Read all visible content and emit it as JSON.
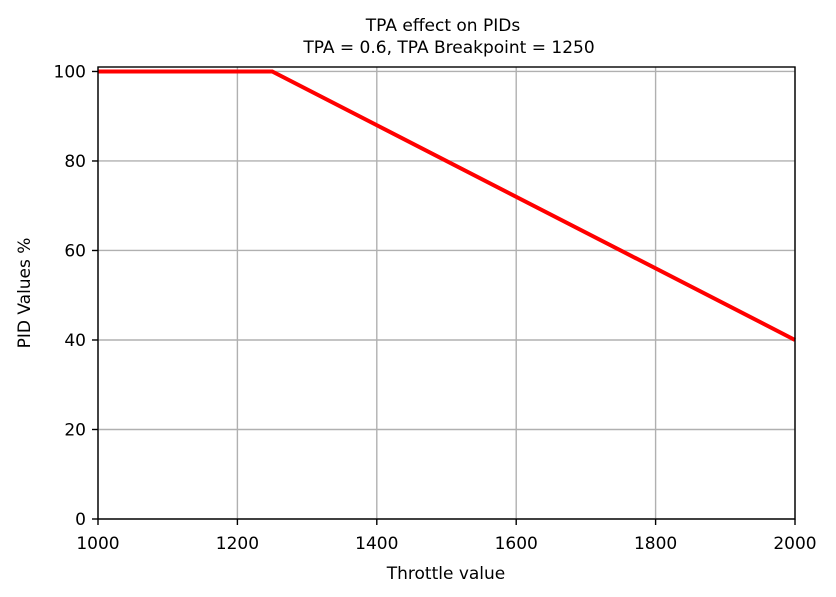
{
  "chart_data": {
    "type": "line",
    "title": "TPA effect on PIDs",
    "subtitle": "TPA = 0.6, TPA Breakpoint = 1250",
    "xlabel": "Throttle value",
    "ylabel": "PID Values %",
    "xlim": [
      1000,
      2000
    ],
    "ylim": [
      0,
      101
    ],
    "xticks": [
      1000,
      1200,
      1400,
      1600,
      1800,
      2000
    ],
    "yticks": [
      0,
      20,
      40,
      60,
      80,
      100
    ],
    "grid": true,
    "series": [
      {
        "color": "#ff0000",
        "x": [
          1000,
          1250,
          2000
        ],
        "y": [
          100,
          100,
          40
        ]
      }
    ]
  }
}
